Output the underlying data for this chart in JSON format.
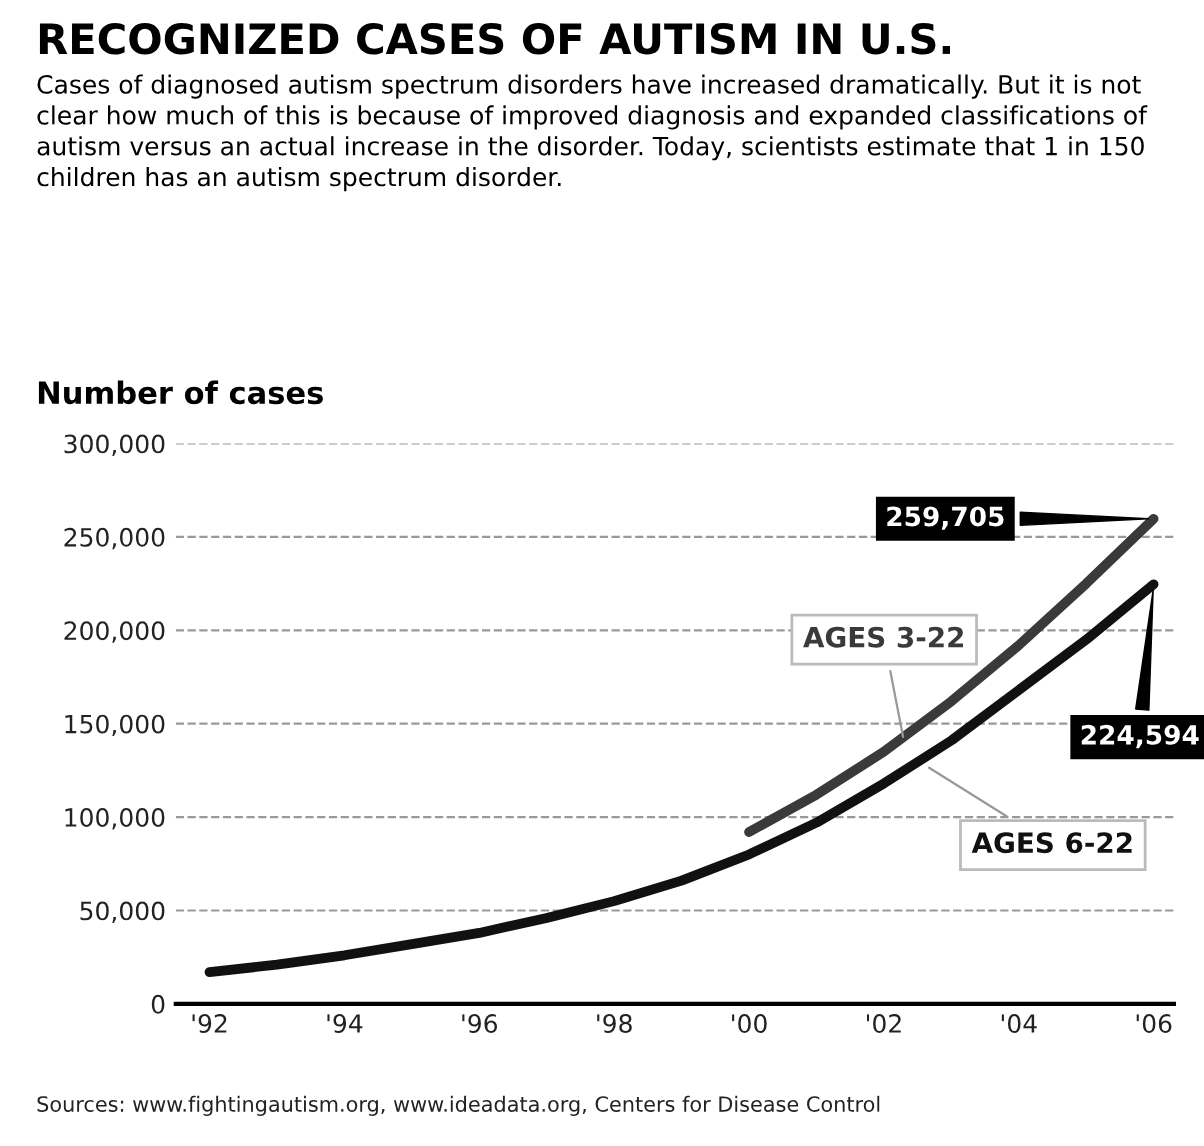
{
  "chart_data": {
    "type": "line",
    "title": "RECOGNIZED CASES OF AUTISM IN U.S.",
    "subtitle": "Cases of diagnosed autism spectrum disorders have increased dramatically. But it is not clear how much of this is because of improved diagnosis and expanded classifications of autism versus an actual increase in the disorder. Today, scientists estimate that 1 in 150 children has an autism spectrum disorder.",
    "ylabel": "Number of cases",
    "series": [
      {
        "name": "AGES 3-22",
        "color": "#3a3a3a",
        "x": [
          2000,
          2001,
          2002,
          2003,
          2004,
          2005,
          2006
        ],
        "values": [
          92000,
          112000,
          135000,
          162000,
          192000,
          225000,
          259705
        ]
      },
      {
        "name": "AGES 6-22",
        "color": "#111111",
        "x": [
          1992,
          1993,
          1994,
          1995,
          1996,
          1997,
          1998,
          1999,
          2000,
          2001,
          2002,
          2003,
          2004,
          2005,
          2006
        ],
        "values": [
          17000,
          21000,
          26000,
          32000,
          38000,
          46000,
          55000,
          66000,
          80000,
          97000,
          118000,
          141000,
          168000,
          195000,
          224594
        ]
      }
    ],
    "annotations": [
      {
        "text": "259,705",
        "x": 2006,
        "y": 259705
      },
      {
        "text": "224,594",
        "x": 2006,
        "y": 224594
      },
      "Sources: www.fightingautism.org, www.ideadata.org, Centers for Disease Control"
    ],
    "xlim": [
      1991.5,
      2006.3
    ],
    "xticks": [
      {
        "value": 1992,
        "label": "'92"
      },
      {
        "value": 1994,
        "label": "'94"
      },
      {
        "value": 1996,
        "label": "'96"
      },
      {
        "value": 1998,
        "label": "'98"
      },
      {
        "value": 2000,
        "label": "'00"
      },
      {
        "value": 2002,
        "label": "'02"
      },
      {
        "value": 2004,
        "label": "'04"
      },
      {
        "value": 2006,
        "label": "'06"
      }
    ],
    "ylim": [
      0,
      300000
    ],
    "yticks": [
      0,
      {
        "value": 50000,
        "label": "50,000"
      },
      {
        "value": 100000,
        "label": "100,000"
      },
      {
        "value": 150000,
        "label": "150,000"
      },
      {
        "value": 200000,
        "label": "200,000"
      },
      {
        "value": 250000,
        "label": "250,000"
      },
      {
        "value": 300000,
        "label": "300,000"
      }
    ],
    "grid": "y",
    "legend": false,
    "line_style": "solid",
    "marker": "none"
  }
}
